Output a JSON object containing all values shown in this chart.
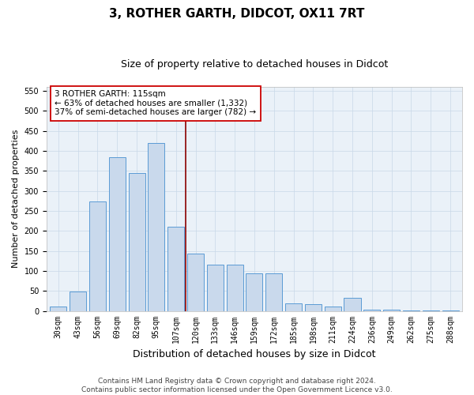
{
  "title": "3, ROTHER GARTH, DIDCOT, OX11 7RT",
  "subtitle": "Size of property relative to detached houses in Didcot",
  "xlabel": "Distribution of detached houses by size in Didcot",
  "ylabel": "Number of detached properties",
  "footer_line1": "Contains HM Land Registry data © Crown copyright and database right 2024.",
  "footer_line2": "Contains public sector information licensed under the Open Government Licence v3.0.",
  "annotation_line1": "3 ROTHER GARTH: 115sqm",
  "annotation_line2": "← 63% of detached houses are smaller (1,332)",
  "annotation_line3": "37% of semi-detached houses are larger (782) →",
  "property_line_x": 7,
  "bar_categories": [
    "30sqm",
    "43sqm",
    "56sqm",
    "69sqm",
    "82sqm",
    "95sqm",
    "107sqm",
    "120sqm",
    "133sqm",
    "146sqm",
    "159sqm",
    "172sqm",
    "185sqm",
    "198sqm",
    "211sqm",
    "224sqm",
    "236sqm",
    "249sqm",
    "262sqm",
    "275sqm",
    "288sqm"
  ],
  "bar_values": [
    10,
    48,
    273,
    385,
    345,
    419,
    210,
    143,
    116,
    116,
    93,
    93,
    19,
    17,
    11,
    32,
    4,
    3,
    2,
    1,
    1
  ],
  "bar_color": "#c9d9ec",
  "bar_edge_color": "#5b9bd5",
  "ref_line_color": "#8b0000",
  "ylim": [
    0,
    560
  ],
  "yticks": [
    0,
    50,
    100,
    150,
    200,
    250,
    300,
    350,
    400,
    450,
    500,
    550
  ],
  "grid_color": "#c8d8e8",
  "bg_color": "#eaf1f8",
  "annotation_box_color": "#ffffff",
  "annotation_box_edge_color": "#cc0000",
  "title_fontsize": 11,
  "subtitle_fontsize": 9,
  "xlabel_fontsize": 9,
  "ylabel_fontsize": 8,
  "tick_fontsize": 7,
  "annotation_fontsize": 7.5,
  "footer_fontsize": 6.5
}
